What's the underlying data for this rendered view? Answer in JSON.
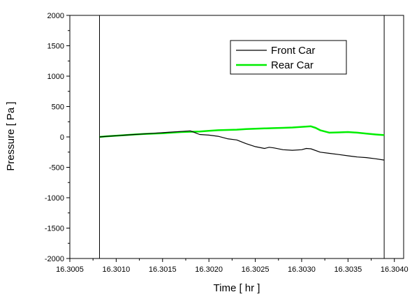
{
  "chart_data": {
    "type": "line",
    "title": "",
    "xlabel": "Time [ hr ]",
    "ylabel": "Pressure [ Pa ]",
    "xlim": [
      16.3005,
      16.3041
    ],
    "ylim": [
      -2000,
      2000
    ],
    "xticks": [
      "16.3005",
      "16.3010",
      "16.3015",
      "16.3020",
      "16.3025",
      "16.3030",
      "16.3035",
      "16.3040"
    ],
    "yticks": [
      "2000",
      "1500",
      "1000",
      "500",
      "0",
      "-500",
      "-1000",
      "-1500",
      "-2000"
    ],
    "grid": false,
    "legend_position": "top-right",
    "markers": [
      16.30082,
      16.30389
    ],
    "series": [
      {
        "name": "Front Car",
        "color": "#000000",
        "x": [
          16.30082,
          16.3009,
          16.301,
          16.3011,
          16.3012,
          16.3013,
          16.3014,
          16.3015,
          16.3016,
          16.3017,
          16.30175,
          16.3018,
          16.30185,
          16.3019,
          16.302,
          16.3021,
          16.3022,
          16.3023,
          16.3024,
          16.3025,
          16.3026,
          16.30265,
          16.3027,
          16.3028,
          16.3029,
          16.303,
          16.30305,
          16.3031,
          16.3032,
          16.3033,
          16.3034,
          16.3035,
          16.3036,
          16.3037,
          16.3038,
          16.30389
        ],
        "y": [
          0,
          10,
          20,
          30,
          40,
          50,
          60,
          70,
          80,
          90,
          95,
          100,
          70,
          40,
          30,
          10,
          -30,
          -50,
          -110,
          -160,
          -190,
          -170,
          -180,
          -210,
          -220,
          -210,
          -190,
          -195,
          -250,
          -270,
          -290,
          -310,
          -330,
          -340,
          -360,
          -380
        ]
      },
      {
        "name": "Rear Car",
        "color": "#00ee00",
        "x": [
          16.30082,
          16.3009,
          16.301,
          16.3011,
          16.3012,
          16.3013,
          16.3014,
          16.3015,
          16.3016,
          16.3017,
          16.3018,
          16.3019,
          16.302,
          16.3021,
          16.3022,
          16.3023,
          16.3024,
          16.3025,
          16.3026,
          16.3027,
          16.3028,
          16.3029,
          16.303,
          16.3031,
          16.30315,
          16.3032,
          16.3033,
          16.3034,
          16.3035,
          16.3036,
          16.3037,
          16.3038,
          16.30389
        ],
        "y": [
          0,
          10,
          20,
          30,
          40,
          50,
          55,
          60,
          70,
          80,
          85,
          90,
          100,
          110,
          115,
          120,
          130,
          135,
          140,
          145,
          150,
          155,
          165,
          175,
          150,
          110,
          70,
          75,
          80,
          70,
          55,
          40,
          30
        ]
      }
    ]
  }
}
